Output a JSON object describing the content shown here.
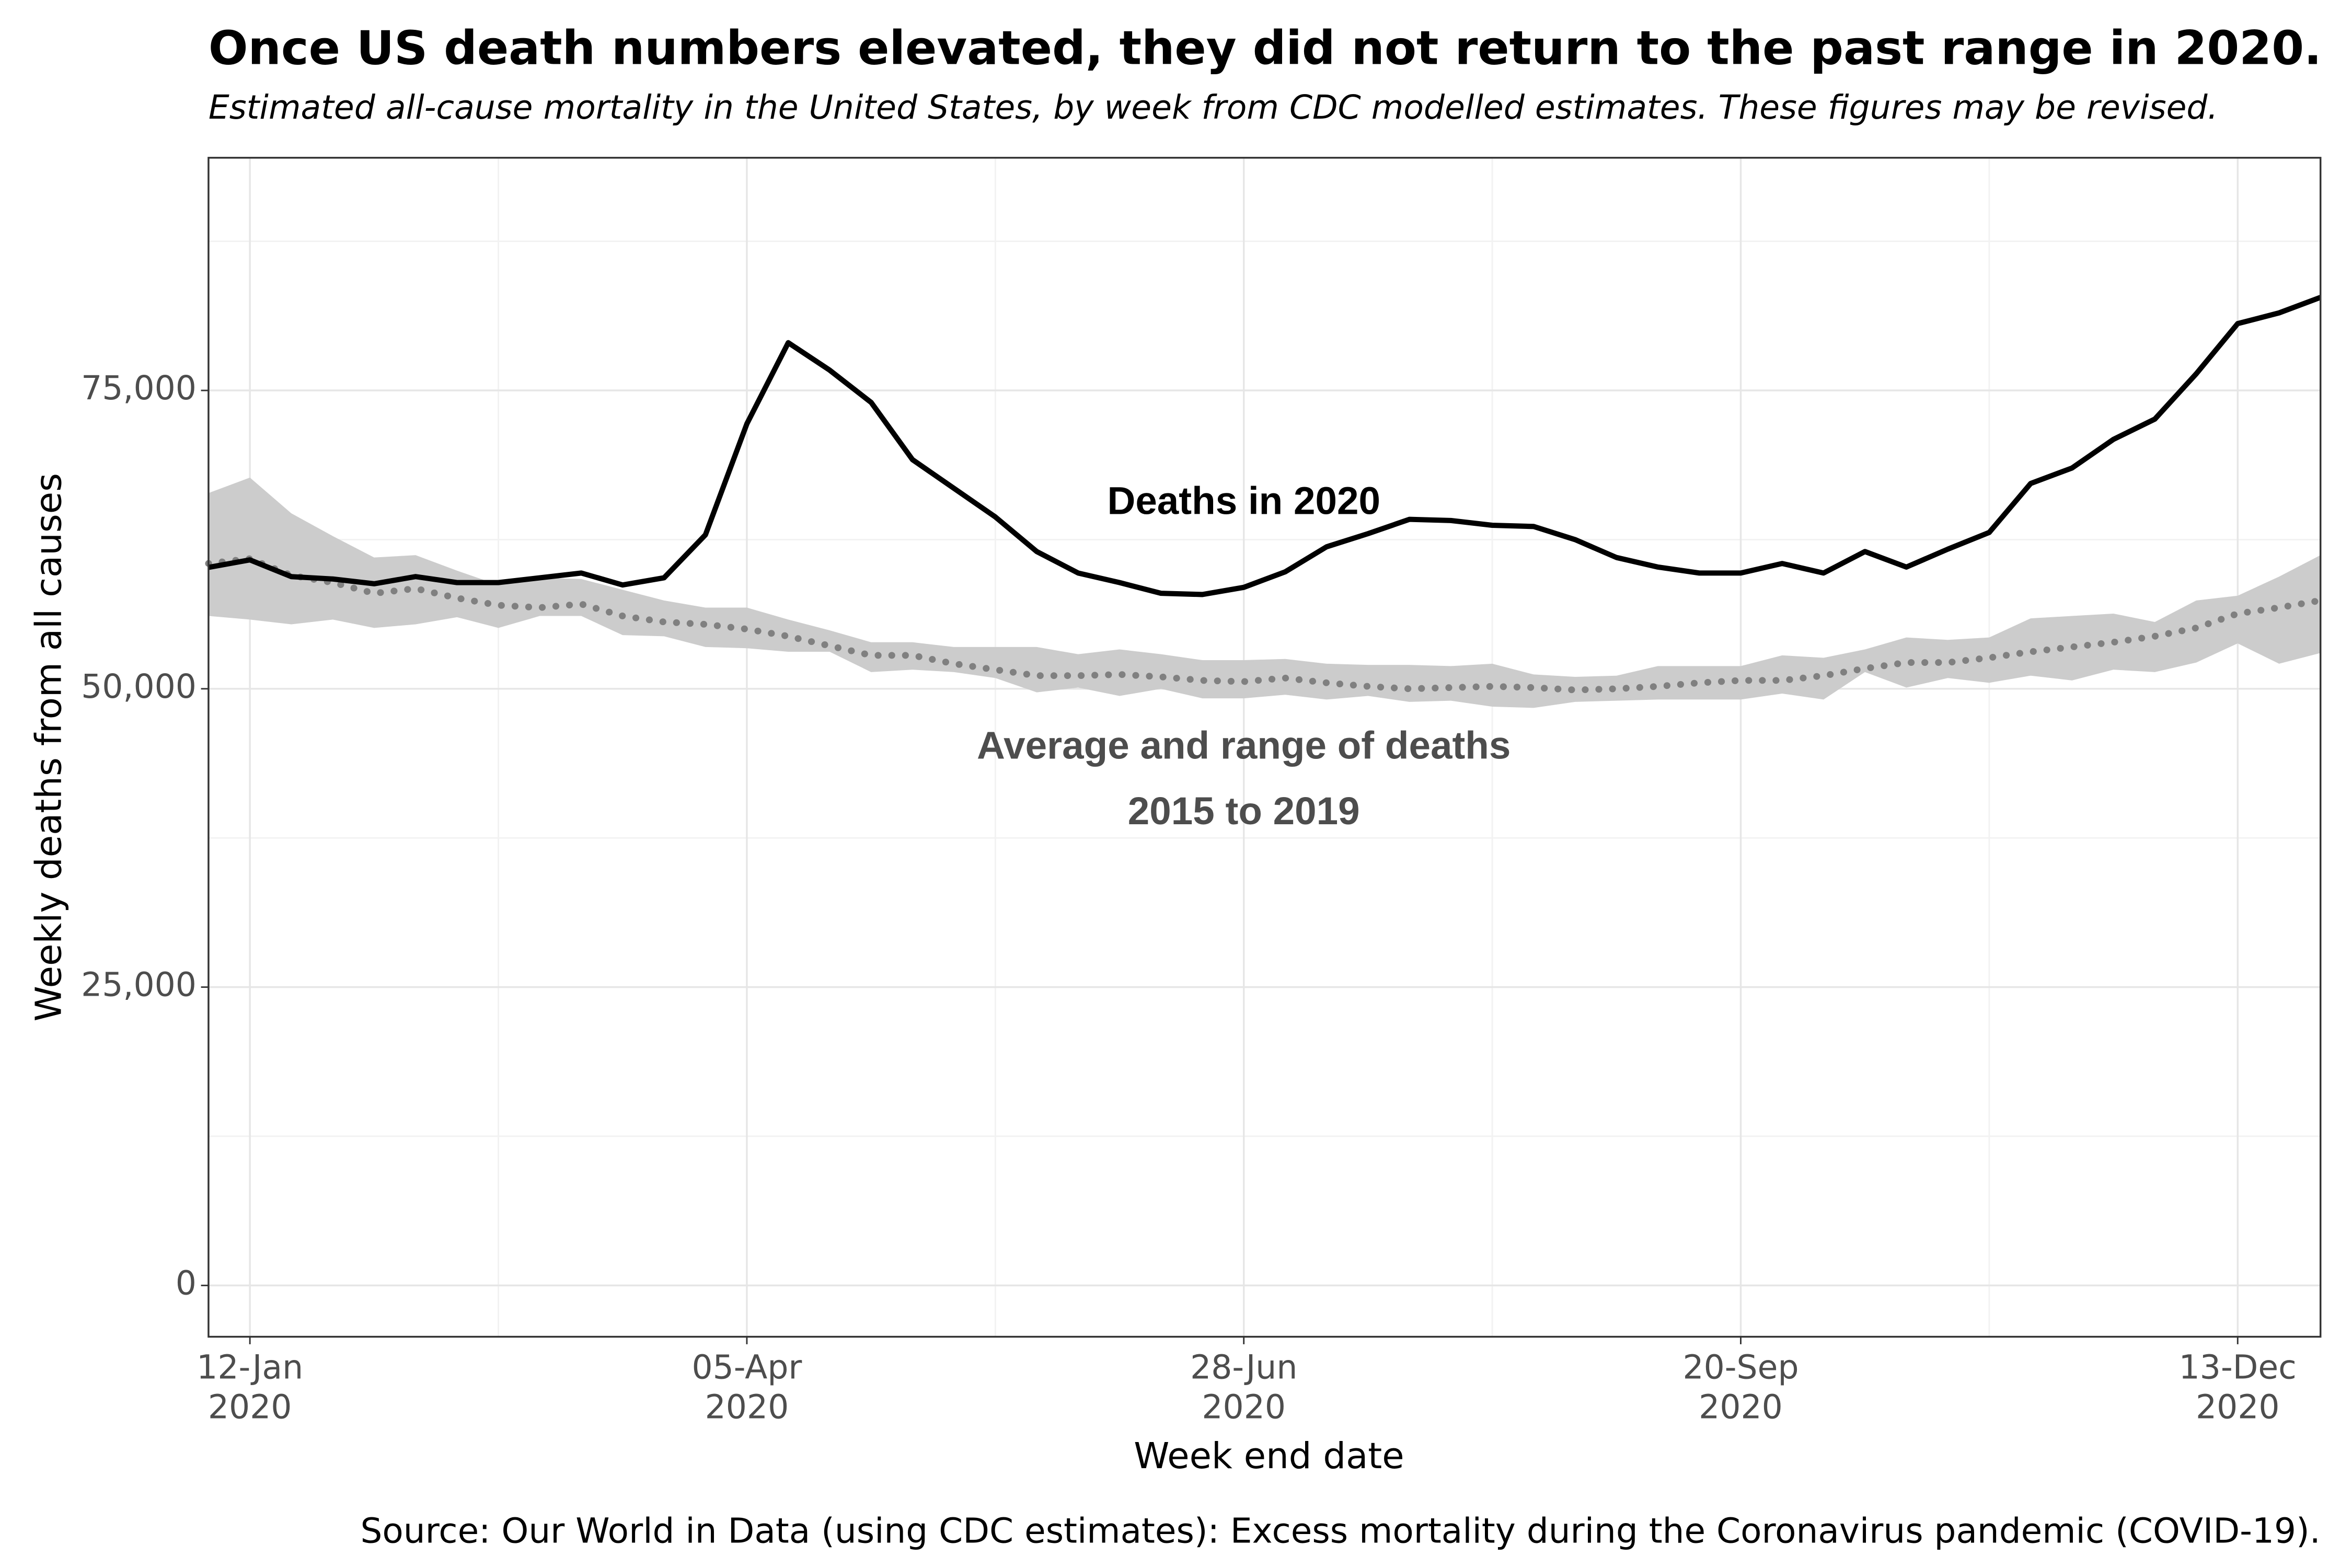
{
  "chart_data": {
    "type": "line",
    "title": "Once US death numbers elevated, they did not return to the past range in 2020.",
    "subtitle": "Estimated all-cause mortality in the United States, by week from CDC modelled estimates. These figures may be revised.",
    "x_label": "Week end date",
    "y_label": "Weekly deaths from all causes",
    "source": "Source: Our World in Data (using CDC estimates): Excess mortality during the Coronavirus pandemic (COVID-19).",
    "annotations": [
      {
        "text": "Deaths in 2020",
        "x": "2020-06-28",
        "y": 65500,
        "color": "#000000"
      },
      {
        "text": "Average and range of deaths",
        "x": "2020-06-28",
        "y": 45000,
        "color": "#4d4d4d"
      },
      {
        "text": "2015 to 2019",
        "x": "2020-06-28",
        "y": 39500,
        "color": "#4d4d4d"
      }
    ],
    "x": [
      "2020-01-05",
      "2020-01-12",
      "2020-01-19",
      "2020-01-26",
      "2020-02-02",
      "2020-02-09",
      "2020-02-16",
      "2020-02-23",
      "2020-03-01",
      "2020-03-08",
      "2020-03-15",
      "2020-03-22",
      "2020-03-29",
      "2020-04-05",
      "2020-04-12",
      "2020-04-19",
      "2020-04-26",
      "2020-05-03",
      "2020-05-10",
      "2020-05-17",
      "2020-05-24",
      "2020-05-31",
      "2020-06-07",
      "2020-06-14",
      "2020-06-21",
      "2020-06-28",
      "2020-07-05",
      "2020-07-12",
      "2020-07-19",
      "2020-07-26",
      "2020-08-02",
      "2020-08-09",
      "2020-08-16",
      "2020-08-23",
      "2020-08-30",
      "2020-09-06",
      "2020-09-13",
      "2020-09-20",
      "2020-09-27",
      "2020-10-04",
      "2020-10-11",
      "2020-10-18",
      "2020-10-25",
      "2020-11-01",
      "2020-11-08",
      "2020-11-15",
      "2020-11-22",
      "2020-11-29",
      "2020-12-06",
      "2020-12-13",
      "2020-12-20",
      "2020-12-27"
    ],
    "band": {
      "color": "#cccccc",
      "upper": [
        66400,
        67700,
        64700,
        62800,
        61000,
        61200,
        59900,
        58700,
        59300,
        59200,
        58300,
        57400,
        56800,
        56800,
        55800,
        54900,
        53900,
        53900,
        53500,
        53500,
        53500,
        52900,
        53300,
        52900,
        52400,
        52400,
        52500,
        52100,
        52000,
        52000,
        51900,
        52100,
        51200,
        51000,
        51100,
        51900,
        51900,
        51900,
        52800,
        52600,
        53300,
        54300,
        54100,
        54300,
        55900,
        56100,
        56300,
        55600,
        57400,
        57800,
        59400,
        61200
      ],
      "lower": [
        56100,
        55800,
        55400,
        55800,
        55100,
        55400,
        56000,
        55100,
        56100,
        56100,
        54500,
        54400,
        53500,
        53400,
        53100,
        53100,
        51400,
        51600,
        51400,
        50900,
        49700,
        50100,
        49400,
        50000,
        49200,
        49200,
        49500,
        49100,
        49400,
        48900,
        49000,
        48500,
        48400,
        48900,
        49000,
        49100,
        49100,
        49100,
        49600,
        49100,
        51400,
        50100,
        50900,
        50500,
        51100,
        50700,
        51600,
        51400,
        52200,
        53800,
        52100,
        53000
      ]
    },
    "series": [
      {
        "color": "#000000",
        "style": "solid",
        "values": [
          60170,
          60800,
          59400,
          59200,
          58800,
          59400,
          58900,
          58900,
          59300,
          59700,
          58700,
          59300,
          62900,
          72200,
          79000,
          76700,
          74000,
          69200,
          66800,
          64400,
          61500,
          59700,
          58900,
          58000,
          57900,
          58500,
          59800,
          61900,
          63000,
          64200,
          64100,
          63700,
          63600,
          62500,
          61000,
          60200,
          59700,
          59700,
          60500,
          59700,
          61500,
          60200,
          61700,
          63100,
          67200,
          68500,
          70900,
          72600,
          76400,
          80600,
          81500,
          82800
        ]
      },
      {
        "color": "#808080",
        "style": "dotted",
        "values": [
          60500,
          60900,
          59500,
          58900,
          58000,
          58400,
          57600,
          57000,
          56800,
          57100,
          56100,
          55600,
          55400,
          55000,
          54400,
          53600,
          52800,
          52800,
          52100,
          51600,
          51100,
          51100,
          51200,
          51000,
          50700,
          50600,
          50900,
          50500,
          50200,
          50000,
          50100,
          50200,
          50100,
          49900,
          50000,
          50200,
          50500,
          50700,
          50700,
          51100,
          51700,
          52200,
          52200,
          52600,
          53100,
          53500,
          53900,
          54400,
          55100,
          56300,
          56800,
          57400
        ]
      }
    ],
    "xlim": [
      "2020-01-05",
      "2020-12-27"
    ],
    "xticks": [
      {
        "value": "2020-01-12",
        "label": "12-Jan\n2020"
      },
      {
        "value": "2020-04-05",
        "label": "05-Apr\n2020"
      },
      {
        "value": "2020-06-28",
        "label": "28-Jun\n2020"
      },
      {
        "value": "2020-09-20",
        "label": "20-Sep\n2020"
      },
      {
        "value": "2020-12-13",
        "label": "13-Dec\n2020"
      }
    ],
    "ylim": [
      -4300,
      94500
    ],
    "yticks": [
      0,
      {
        "value": 25000,
        "label": "25,000"
      },
      {
        "value": 50000,
        "label": "50,000"
      },
      {
        "value": 75000,
        "label": "75,000"
      }
    ],
    "grid": true
  }
}
